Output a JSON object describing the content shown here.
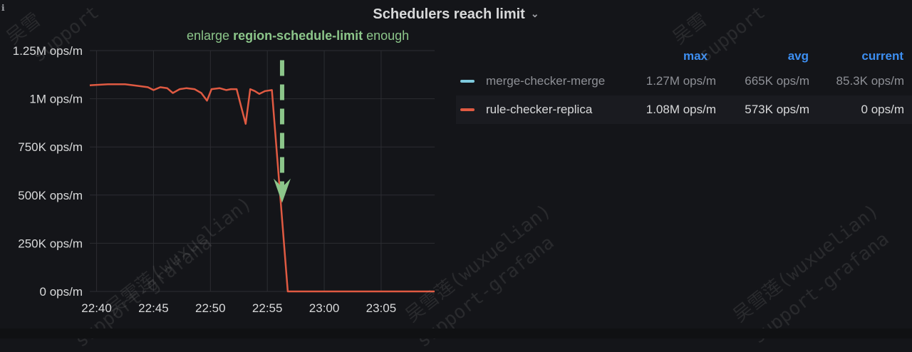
{
  "panel": {
    "title": "Schedulers reach limit",
    "chevron": "⌄",
    "info_icon": "info-icon",
    "annotation": {
      "prefix": "enlarge ",
      "highlight": "region-schedule-limit",
      "suffix": " enough",
      "color": "#8cc68a"
    }
  },
  "legend": {
    "headers": {
      "max": "max",
      "avg": "avg",
      "current": "current"
    },
    "rows": [
      {
        "name": "merge-checker-merge",
        "color": "#7ec9dd",
        "max": "1.27M ops/m",
        "avg": "665K ops/m",
        "current": "85.3K ops/m"
      },
      {
        "name": "rule-checker-replica",
        "color": "#e05a42",
        "max": "1.08M ops/m",
        "avg": "573K ops/m",
        "current": "0 ops/m"
      }
    ]
  },
  "watermarks": [
    "吴雪莲(wuxuelian)",
    "support-grafana",
    "吴雪",
    "support"
  ],
  "chart_data": {
    "type": "line",
    "y_ticks": [
      {
        "value": 0,
        "label": "0 ops/m"
      },
      {
        "value": 250000,
        "label": "250K ops/m"
      },
      {
        "value": 500000,
        "label": "500K ops/m"
      },
      {
        "value": 750000,
        "label": "750K ops/m"
      },
      {
        "value": 1000000,
        "label": "1M ops/m"
      },
      {
        "value": 1250000,
        "label": "1.25M ops/m"
      }
    ],
    "x_ticks": [
      {
        "value": 0,
        "label": "22:40"
      },
      {
        "value": 5,
        "label": "22:45"
      },
      {
        "value": 10,
        "label": "22:50"
      },
      {
        "value": 15,
        "label": "22:55"
      },
      {
        "value": 20,
        "label": "23:00"
      },
      {
        "value": 25,
        "label": "23:05"
      }
    ],
    "xlim": [
      -0.6,
      29.7
    ],
    "ylim": [
      0,
      1250000
    ],
    "grid": true,
    "legend_placement": "right",
    "series": [
      {
        "name": "rule-checker-replica",
        "color": "#e05a42",
        "points": [
          [
            -0.6,
            1070000
          ],
          [
            1,
            1075000
          ],
          [
            2.5,
            1075000
          ],
          [
            3.5,
            1068000
          ],
          [
            4.5,
            1060000
          ],
          [
            5,
            1045000
          ],
          [
            5.6,
            1060000
          ],
          [
            6.2,
            1055000
          ],
          [
            6.7,
            1030000
          ],
          [
            7.3,
            1050000
          ],
          [
            7.9,
            1055000
          ],
          [
            8.6,
            1050000
          ],
          [
            9.2,
            1030000
          ],
          [
            9.7,
            990000
          ],
          [
            10.1,
            1050000
          ],
          [
            10.8,
            1055000
          ],
          [
            11.4,
            1045000
          ],
          [
            11.8,
            1050000
          ],
          [
            12.3,
            1050000
          ],
          [
            12.7,
            960000
          ],
          [
            13.1,
            870000
          ],
          [
            13.5,
            1050000
          ],
          [
            13.9,
            1040000
          ],
          [
            14.3,
            1025000
          ],
          [
            14.8,
            1040000
          ],
          [
            15.4,
            1045000
          ],
          [
            16.8,
            0
          ],
          [
            29.7,
            0
          ]
        ]
      }
    ],
    "annotation_arrow": {
      "x": 16.3,
      "from_y": 1200000,
      "to_y": 460000,
      "color": "#8cc68a"
    }
  }
}
